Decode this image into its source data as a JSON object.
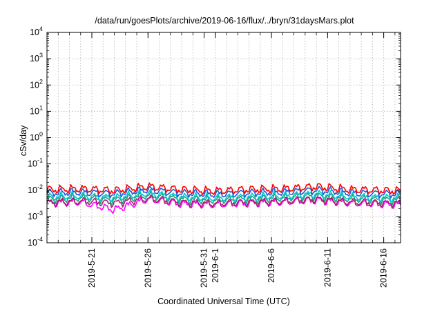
{
  "chart_data": {
    "type": "line",
    "title": "/data/run/goesPlots/archive/2019-06-16/flux/../bryn/31daysMars.plot",
    "xlabel": "Coordinated Universal Time (UTC)",
    "ylabel": "cSv/day",
    "yscale": "log",
    "ylim": [
      0.0001,
      10000
    ],
    "xlim": [
      "2019-05-17",
      "2019-06-17T12:00"
    ],
    "grid": true,
    "y_ticks": [
      {
        "value": 0.0001,
        "base": "10",
        "exp": "-4"
      },
      {
        "value": 0.001,
        "base": "10",
        "exp": "-3"
      },
      {
        "value": 0.01,
        "base": "10",
        "exp": "-2"
      },
      {
        "value": 0.1,
        "base": "10",
        "exp": "-1"
      },
      {
        "value": 1,
        "base": "10",
        "exp": "0"
      },
      {
        "value": 10,
        "base": "10",
        "exp": "1"
      },
      {
        "value": 100,
        "base": "10",
        "exp": "2"
      },
      {
        "value": 1000,
        "base": "10",
        "exp": "3"
      },
      {
        "value": 10000,
        "base": "10",
        "exp": "4"
      }
    ],
    "x_ticks": [
      {
        "date": "2019-05-21",
        "label": "2019-5-21"
      },
      {
        "date": "2019-05-26",
        "label": "2019-5-26"
      },
      {
        "date": "2019-05-31",
        "label": "2019-5-31"
      },
      {
        "date": "2019-06-01",
        "label": "2019-6-1"
      },
      {
        "date": "2019-06-06",
        "label": "2019-6-6"
      },
      {
        "date": "2019-06-11",
        "label": "2019-6-11"
      },
      {
        "date": "2019-06-16",
        "label": "2019-6-16"
      }
    ],
    "series": [
      {
        "color": "#ff00ff",
        "period_days": 1,
        "points": [
          [
            "2019-05-17",
            0.0032
          ],
          [
            "2019-05-20",
            0.0035
          ],
          [
            "2019-05-23",
            0.0018
          ],
          [
            "2019-05-26",
            0.0045
          ],
          [
            "2019-05-29",
            0.003
          ],
          [
            "2019-06-01",
            0.0028
          ],
          [
            "2019-06-04",
            0.0032
          ],
          [
            "2019-06-07",
            0.0035
          ],
          [
            "2019-06-10",
            0.0042
          ],
          [
            "2019-06-13",
            0.0032
          ],
          [
            "2019-06-17T12:00",
            0.0028
          ]
        ]
      },
      {
        "color": "#a0206a",
        "period_days": 1,
        "points": [
          [
            "2019-05-17",
            0.0034
          ],
          [
            "2019-05-20",
            0.0038
          ],
          [
            "2019-05-23",
            0.0032
          ],
          [
            "2019-05-26",
            0.0048
          ],
          [
            "2019-05-29",
            0.0034
          ],
          [
            "2019-06-01",
            0.0031
          ],
          [
            "2019-06-04",
            0.0035
          ],
          [
            "2019-06-07",
            0.0038
          ],
          [
            "2019-06-10",
            0.0045
          ],
          [
            "2019-06-13",
            0.0035
          ],
          [
            "2019-06-17T12:00",
            0.0031
          ]
        ]
      },
      {
        "color": "#22a08a",
        "period_days": 1,
        "points": [
          [
            "2019-05-17",
            0.0045
          ],
          [
            "2019-05-20",
            0.005
          ],
          [
            "2019-05-23",
            0.0042
          ],
          [
            "2019-05-26",
            0.0062
          ],
          [
            "2019-05-29",
            0.0045
          ],
          [
            "2019-06-01",
            0.0041
          ],
          [
            "2019-06-04",
            0.0046
          ],
          [
            "2019-06-07",
            0.005
          ],
          [
            "2019-06-10",
            0.006
          ],
          [
            "2019-06-13",
            0.0046
          ],
          [
            "2019-06-17T12:00",
            0.0041
          ]
        ]
      },
      {
        "color": "#00c8c8",
        "period_days": 1,
        "points": [
          [
            "2019-05-17",
            0.0055
          ],
          [
            "2019-05-20",
            0.006
          ],
          [
            "2019-05-23",
            0.0052
          ],
          [
            "2019-05-26",
            0.0075
          ],
          [
            "2019-05-29",
            0.0055
          ],
          [
            "2019-06-01",
            0.005
          ],
          [
            "2019-06-04",
            0.0056
          ],
          [
            "2019-06-07",
            0.006
          ],
          [
            "2019-06-10",
            0.0072
          ],
          [
            "2019-06-13",
            0.0056
          ],
          [
            "2019-06-17T12:00",
            0.005
          ]
        ]
      },
      {
        "color": "#1e5adc",
        "period_days": 1,
        "points": [
          [
            "2019-05-17",
            0.0078
          ],
          [
            "2019-05-20",
            0.0085
          ],
          [
            "2019-05-23",
            0.0074
          ],
          [
            "2019-05-26",
            0.0105
          ],
          [
            "2019-05-29",
            0.0078
          ],
          [
            "2019-06-01",
            0.0071
          ],
          [
            "2019-06-04",
            0.008
          ],
          [
            "2019-06-07",
            0.0085
          ],
          [
            "2019-06-10",
            0.0102
          ],
          [
            "2019-06-13",
            0.008
          ],
          [
            "2019-06-17T12:00",
            0.0071
          ]
        ]
      },
      {
        "color": "#ff0000",
        "period_days": 1,
        "points": [
          [
            "2019-05-17",
            0.0105
          ],
          [
            "2019-05-20",
            0.0115
          ],
          [
            "2019-05-23",
            0.0098
          ],
          [
            "2019-05-26",
            0.014
          ],
          [
            "2019-05-29",
            0.0105
          ],
          [
            "2019-06-01",
            0.0095
          ],
          [
            "2019-06-04",
            0.0108
          ],
          [
            "2019-06-07",
            0.0115
          ],
          [
            "2019-06-10",
            0.0138
          ],
          [
            "2019-06-13",
            0.0108
          ],
          [
            "2019-06-17T12:00",
            0.0095
          ]
        ]
      }
    ]
  }
}
